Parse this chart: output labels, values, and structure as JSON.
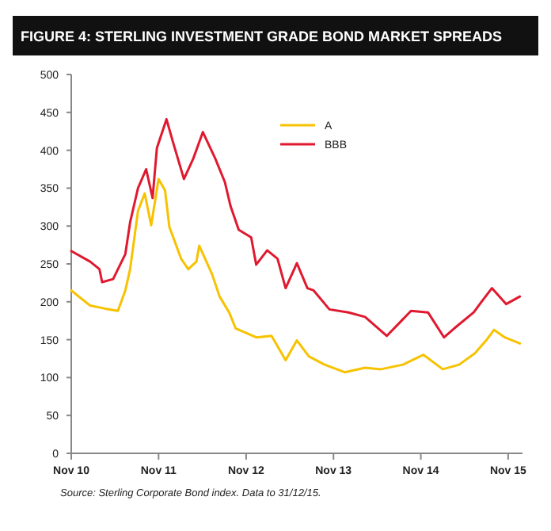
{
  "chart_data": {
    "type": "line",
    "title": "FIGURE 4: STERLING INVESTMENT GRADE BOND MARKET SPREADS",
    "annotations": [
      "Source: Sterling Corporate Bond index.  Data to 31/12/15."
    ],
    "xlim": [
      "2010-11-01",
      "2015-12-31"
    ],
    "xticks": [
      {
        "value": "2010-11-01",
        "label": "Nov 10"
      },
      {
        "value": "2011-11-01",
        "label": "Nov 11"
      },
      {
        "value": "2012-11-01",
        "label": "Nov 12"
      },
      {
        "value": "2013-11-01",
        "label": "Nov 13"
      },
      {
        "value": "2014-11-01",
        "label": "Nov 14"
      },
      {
        "value": "2015-11-01",
        "label": "Nov 15"
      }
    ],
    "ylim": [
      0,
      500
    ],
    "yticks": [
      0,
      50,
      100,
      150,
      200,
      250,
      300,
      350,
      400,
      450,
      500
    ],
    "grid": false,
    "legend": "top right",
    "marker": "none",
    "line_style": "solid",
    "series": [
      {
        "name": "A",
        "color": "#f7c200",
        "x": [
          "2010-11-01",
          "2011-01-19",
          "2011-03-22",
          "2011-05-15",
          "2011-06-15",
          "2011-07-05",
          "2011-08-07",
          "2011-09-04",
          "2011-10-01",
          "2011-11-01",
          "2011-11-28",
          "2011-12-16",
          "2012-02-03",
          "2012-03-04",
          "2012-04-07",
          "2012-04-19",
          "2012-06-12",
          "2012-07-13",
          "2012-08-22",
          "2012-09-18",
          "2012-12-13",
          "2013-02-15",
          "2013-04-15",
          "2013-06-01",
          "2013-07-21",
          "2013-09-25",
          "2013-12-18",
          "2014-03-13",
          "2014-05-18",
          "2014-08-18",
          "2014-11-12",
          "2015-02-01",
          "2015-04-10",
          "2015-06-15",
          "2015-08-01",
          "2015-09-03",
          "2015-10-18",
          "2015-12-20"
        ],
        "values": [
          215,
          195,
          191,
          188,
          215,
          243,
          320,
          343,
          301,
          362,
          347,
          299,
          257,
          243,
          253,
          274,
          236,
          207,
          186,
          165,
          153,
          155,
          123,
          149,
          128,
          117,
          107,
          113,
          111,
          117,
          130,
          111,
          117,
          132,
          149,
          163,
          153,
          145
        ]
      },
      {
        "name": "BBB",
        "color": "#e0192f",
        "x": [
          "2010-11-01",
          "2011-01-19",
          "2011-02-27",
          "2011-03-10",
          "2011-04-25",
          "2011-06-15",
          "2011-07-05",
          "2011-08-07",
          "2011-09-10",
          "2011-10-07",
          "2011-10-25",
          "2011-12-04",
          "2012-01-01",
          "2012-02-15",
          "2012-03-25",
          "2012-05-04",
          "2012-06-25",
          "2012-08-04",
          "2012-08-28",
          "2012-10-01",
          "2012-11-22",
          "2012-12-13",
          "2013-01-28",
          "2013-03-12",
          "2013-04-15",
          "2013-06-01",
          "2013-07-15",
          "2013-08-10",
          "2013-10-15",
          "2014-01-03",
          "2014-03-13",
          "2014-06-12",
          "2014-09-21",
          "2014-12-01",
          "2015-02-06",
          "2015-03-21",
          "2015-06-10",
          "2015-07-15",
          "2015-08-25",
          "2015-10-24",
          "2015-12-20"
        ],
        "values": [
          267,
          253,
          243,
          226,
          230,
          263,
          305,
          350,
          375,
          337,
          403,
          441,
          410,
          362,
          389,
          424,
          389,
          358,
          326,
          295,
          285,
          249,
          268,
          257,
          218,
          251,
          218,
          215,
          190,
          186,
          180,
          155,
          188,
          186,
          153,
          165,
          186,
          201,
          218,
          197,
          207
        ]
      }
    ]
  }
}
